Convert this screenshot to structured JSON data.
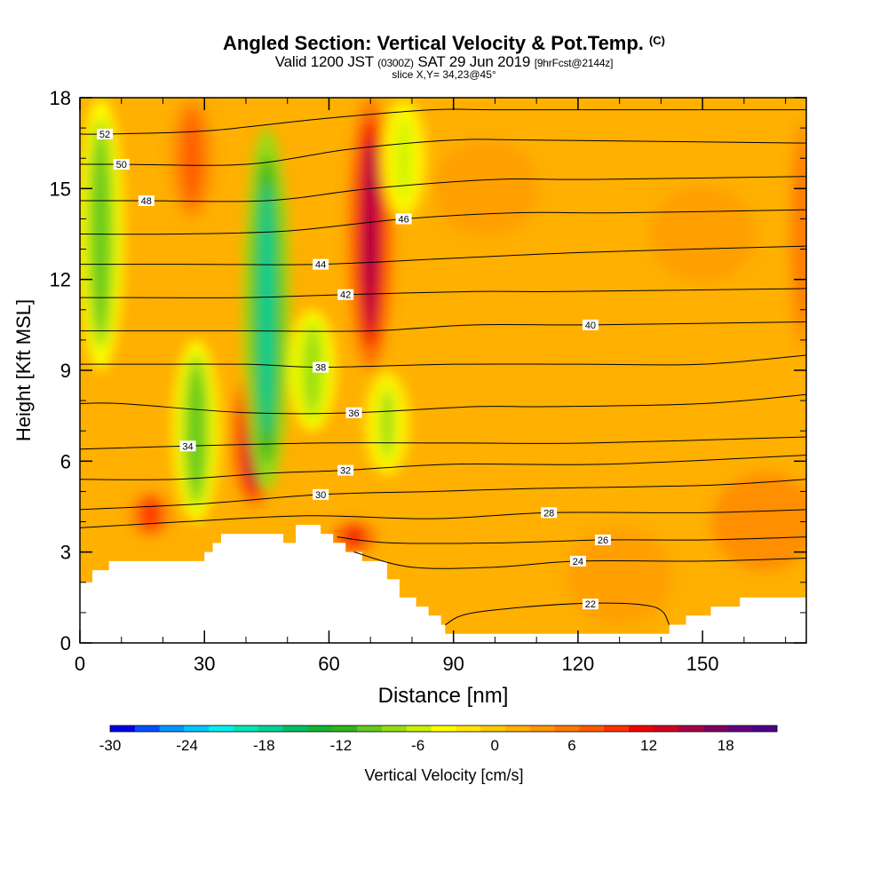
{
  "header": {
    "title": "Angled Section: Vertical Velocity & Pot.Temp.",
    "title_suffix": "(C)",
    "valid_prefix": "Valid 1200 JST",
    "valid_utc": "(0300Z)",
    "valid_date": "SAT 29 Jun 2019",
    "forecast_info": "[9hrFcst@2144z]",
    "slice_info": "slice X,Y= 34,23@45°"
  },
  "chart_data": {
    "type": "heatmap",
    "xlabel": "Distance [nm]",
    "ylabel": "Height [Kft MSL]",
    "xlim": [
      0,
      175
    ],
    "ylim": [
      0,
      18
    ],
    "x_ticks": [
      0,
      30,
      60,
      90,
      120,
      150
    ],
    "y_ticks": [
      0,
      3,
      6,
      9,
      12,
      15,
      18
    ],
    "colorbar": {
      "label": "Vertical Velocity [cm/s]",
      "tick_labels": [
        -30,
        -24,
        -18,
        -12,
        -6,
        0,
        6,
        12,
        18
      ],
      "range": [
        -30,
        22
      ],
      "colors": [
        "#0000e6",
        "#0050ff",
        "#0096ff",
        "#00c8ff",
        "#00f0f0",
        "#00e6b4",
        "#00d296",
        "#00be64",
        "#14b432",
        "#32b41e",
        "#64c81e",
        "#96dc14",
        "#c8f000",
        "#ffff00",
        "#ffe600",
        "#ffc800",
        "#ffb000",
        "#ff9600",
        "#ff7800",
        "#ff5a00",
        "#ff3200",
        "#f00000",
        "#d2001e",
        "#aa0046",
        "#820064",
        "#640082",
        "#50008c"
      ]
    },
    "vertical_velocity_features": [
      {
        "kind": "updraft",
        "x": 42,
        "bottom": 4.5,
        "top": 9,
        "peak_cm_s": 16
      },
      {
        "kind": "updraft",
        "x": 70,
        "bottom": 9,
        "top": 18,
        "peak_cm_s": 16
      },
      {
        "kind": "updraft",
        "x": 66,
        "bottom": 3,
        "top": 4,
        "peak_cm_s": 12
      },
      {
        "kind": "updraft",
        "x": 17,
        "bottom": 3.5,
        "top": 5,
        "peak_cm_s": 10
      },
      {
        "kind": "updraft",
        "x": 27,
        "bottom": 14,
        "top": 18,
        "peak_cm_s": 8
      },
      {
        "kind": "updraft",
        "x": 174,
        "bottom": 9,
        "top": 18,
        "peak_cm_s": 6
      },
      {
        "kind": "downdraft",
        "x": 45,
        "bottom": 5,
        "top": 17,
        "peak_cm_s": -18
      },
      {
        "kind": "downdraft",
        "x": 5,
        "bottom": 9,
        "top": 18,
        "peak_cm_s": -10
      },
      {
        "kind": "downdraft",
        "x": 28,
        "bottom": 4,
        "top": 10,
        "peak_cm_s": -10
      },
      {
        "kind": "downdraft",
        "x": 56,
        "bottom": 7,
        "top": 11,
        "peak_cm_s": -8
      },
      {
        "kind": "downdraft",
        "x": 74,
        "bottom": 5.5,
        "top": 9,
        "peak_cm_s": -7
      },
      {
        "kind": "downdraft",
        "x": 78,
        "bottom": 14,
        "top": 18,
        "peak_cm_s": -6
      }
    ],
    "terrain_km_profile": [
      [
        0,
        2.0
      ],
      [
        3,
        2.0
      ],
      [
        3,
        2.4
      ],
      [
        7,
        2.4
      ],
      [
        7,
        2.7
      ],
      [
        30,
        2.7
      ],
      [
        30,
        3.0
      ],
      [
        32,
        3.0
      ],
      [
        32,
        3.3
      ],
      [
        34,
        3.3
      ],
      [
        34,
        3.6
      ],
      [
        49,
        3.6
      ],
      [
        49,
        3.3
      ],
      [
        52,
        3.3
      ],
      [
        52,
        3.9
      ],
      [
        58,
        3.9
      ],
      [
        58,
        3.6
      ],
      [
        61,
        3.6
      ],
      [
        61,
        3.3
      ],
      [
        64,
        3.3
      ],
      [
        64,
        3.0
      ],
      [
        68,
        3.0
      ],
      [
        68,
        2.7
      ],
      [
        74,
        2.7
      ],
      [
        74,
        2.1
      ],
      [
        77,
        2.1
      ],
      [
        77,
        1.5
      ],
      [
        81,
        1.5
      ],
      [
        81,
        1.2
      ],
      [
        84,
        1.2
      ],
      [
        84,
        0.9
      ],
      [
        87,
        0.9
      ],
      [
        87,
        0.6
      ],
      [
        88,
        0.6
      ],
      [
        88,
        0.3
      ],
      [
        142,
        0.3
      ],
      [
        142,
        0.6
      ],
      [
        146,
        0.6
      ],
      [
        146,
        0.9
      ],
      [
        152,
        0.9
      ],
      [
        152,
        1.2
      ],
      [
        159,
        1.2
      ],
      [
        159,
        1.5
      ],
      [
        175,
        1.5
      ]
    ],
    "theta_contours": [
      {
        "value": 22,
        "label": "22",
        "label_x": 123,
        "points": [
          [
            88,
            0.6
          ],
          [
            95,
            1.0
          ],
          [
            120,
            1.3
          ],
          [
            138,
            1.2
          ],
          [
            142,
            0.6
          ]
        ]
      },
      {
        "value": 24,
        "label": "24",
        "label_x": 120,
        "points": [
          [
            66,
            3.0
          ],
          [
            80,
            2.5
          ],
          [
            100,
            2.5
          ],
          [
            120,
            2.7
          ],
          [
            150,
            2.7
          ],
          [
            175,
            2.8
          ]
        ]
      },
      {
        "value": 26,
        "label": "26",
        "label_x": 126,
        "points": [
          [
            62,
            3.5
          ],
          [
            75,
            3.3
          ],
          [
            100,
            3.3
          ],
          [
            126,
            3.4
          ],
          [
            150,
            3.4
          ],
          [
            175,
            3.5
          ]
        ]
      },
      {
        "value": 28,
        "label": "28",
        "label_x": 113,
        "points": [
          [
            0,
            3.8
          ],
          [
            25,
            4.0
          ],
          [
            55,
            4.2
          ],
          [
            85,
            4.1
          ],
          [
            113,
            4.3
          ],
          [
            150,
            4.3
          ],
          [
            175,
            4.4
          ]
        ]
      },
      {
        "value": 30,
        "label": "30",
        "label_x": 58,
        "points": [
          [
            0,
            4.4
          ],
          [
            30,
            4.6
          ],
          [
            58,
            4.9
          ],
          [
            85,
            5.0
          ],
          [
            110,
            5.1
          ],
          [
            150,
            5.2
          ],
          [
            175,
            5.4
          ]
        ]
      },
      {
        "value": 32,
        "label": "32",
        "label_x": 64,
        "points": [
          [
            0,
            5.4
          ],
          [
            23,
            5.4
          ],
          [
            45,
            5.6
          ],
          [
            64,
            5.7
          ],
          [
            90,
            5.9
          ],
          [
            127,
            5.9
          ],
          [
            175,
            6.2
          ]
        ]
      },
      {
        "value": 34,
        "label": "34",
        "label_x": 26,
        "points": [
          [
            0,
            6.4
          ],
          [
            26,
            6.5
          ],
          [
            58,
            6.6
          ],
          [
            90,
            6.6
          ],
          [
            123,
            6.6
          ],
          [
            175,
            6.8
          ]
        ]
      },
      {
        "value": 36,
        "label": "36",
        "label_x": 66,
        "points": [
          [
            0,
            7.9
          ],
          [
            10,
            7.9
          ],
          [
            40,
            7.6
          ],
          [
            66,
            7.6
          ],
          [
            95,
            7.8
          ],
          [
            113,
            7.8
          ],
          [
            150,
            7.9
          ],
          [
            175,
            8.2
          ]
        ]
      },
      {
        "value": 38,
        "label": "38",
        "label_x": 58,
        "points": [
          [
            0,
            9.2
          ],
          [
            10,
            9.2
          ],
          [
            40,
            9.2
          ],
          [
            58,
            9.1
          ],
          [
            90,
            9.2
          ],
          [
            120,
            9.2
          ],
          [
            150,
            9.2
          ],
          [
            175,
            9.5
          ]
        ]
      },
      {
        "value": 40,
        "label": "40",
        "label_x": 123,
        "points": [
          [
            0,
            10.3
          ],
          [
            16,
            10.3
          ],
          [
            40,
            10.3
          ],
          [
            70,
            10.3
          ],
          [
            95,
            10.5
          ],
          [
            123,
            10.5
          ],
          [
            175,
            10.6
          ]
        ]
      },
      {
        "value": 42,
        "label": "42",
        "label_x": 64,
        "points": [
          [
            0,
            11.4
          ],
          [
            13,
            11.4
          ],
          [
            40,
            11.4
          ],
          [
            64,
            11.5
          ],
          [
            95,
            11.6
          ],
          [
            117,
            11.6
          ],
          [
            175,
            11.7
          ]
        ]
      },
      {
        "value": 44,
        "label": "44",
        "label_x": 58,
        "points": [
          [
            0,
            12.5
          ],
          [
            26,
            12.5
          ],
          [
            58,
            12.5
          ],
          [
            90,
            12.7
          ],
          [
            123,
            12.9
          ],
          [
            175,
            13.1
          ]
        ]
      },
      {
        "value": 46,
        "label": "46",
        "label_x": 78,
        "points": [
          [
            0,
            13.5
          ],
          [
            23,
            13.5
          ],
          [
            50,
            13.6
          ],
          [
            78,
            14.0
          ],
          [
            105,
            14.2
          ],
          [
            130,
            14.2
          ],
          [
            175,
            14.3
          ]
        ]
      },
      {
        "value": 48,
        "label": "48",
        "label_x": 16,
        "points": [
          [
            0,
            14.6
          ],
          [
            16,
            14.6
          ],
          [
            45,
            14.6
          ],
          [
            70,
            15.0
          ],
          [
            100,
            15.3
          ],
          [
            123,
            15.3
          ],
          [
            175,
            15.4
          ]
        ]
      },
      {
        "value": 50,
        "label": "50",
        "label_x": 10,
        "points": [
          [
            0,
            15.8
          ],
          [
            10,
            15.8
          ],
          [
            40,
            15.8
          ],
          [
            65,
            16.3
          ],
          [
            90,
            16.6
          ],
          [
            110,
            16.6
          ],
          [
            175,
            16.5
          ]
        ]
      },
      {
        "value": 52,
        "label": "52",
        "label_x": 6,
        "points": [
          [
            0,
            16.8
          ],
          [
            6,
            16.8
          ],
          [
            30,
            16.9
          ],
          [
            58,
            17.3
          ],
          [
            85,
            17.6
          ],
          [
            104,
            17.6
          ],
          [
            175,
            17.6
          ]
        ]
      }
    ]
  }
}
